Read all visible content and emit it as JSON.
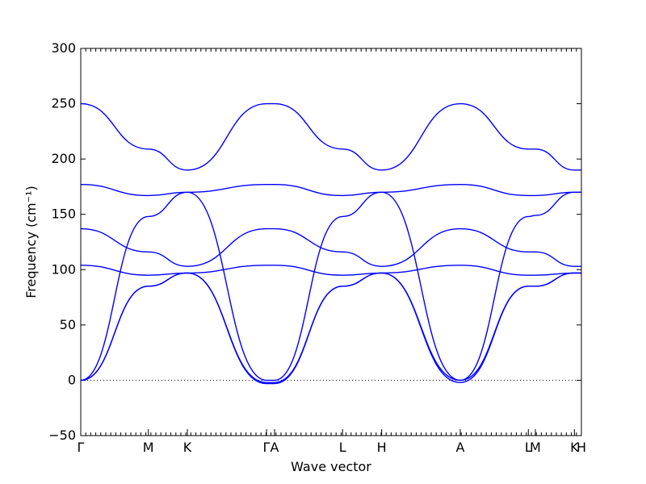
{
  "chart_data": {
    "type": "line",
    "xlabel": "Wave vector",
    "ylabel": "Frequency (cm⁻¹)",
    "xlim": [
      0,
      1
    ],
    "ylim": [
      -50,
      300
    ],
    "y_ticks": [
      -50,
      0,
      50,
      100,
      150,
      200,
      250,
      300
    ],
    "x_ticks": [
      {
        "label": "Γ",
        "x": 0.0
      },
      {
        "label": "M",
        "x": 0.135
      },
      {
        "label": "K",
        "x": 0.213
      },
      {
        "label": "Γ",
        "x": 0.371
      },
      {
        "label": "A",
        "x": 0.387
      },
      {
        "label": "L",
        "x": 0.523
      },
      {
        "label": "H",
        "x": 0.601
      },
      {
        "label": "A",
        "x": 0.758
      },
      {
        "label": "L",
        "x": 0.894
      },
      {
        "label": "M",
        "x": 0.908
      },
      {
        "label": "K",
        "x": 0.986
      },
      {
        "label": "H",
        "x": 1.0
      }
    ],
    "zero_line": {
      "y": 0,
      "style": "dotted"
    },
    "grid": false,
    "legend": false,
    "line_color": "#0000ff",
    "series": [
      {
        "x": [
          0.0,
          0.135,
          0.213,
          0.371,
          0.387,
          0.523,
          0.601,
          0.758,
          0.894,
          0.908,
          0.986,
          1.0
        ],
        "y": [
          0,
          85,
          97,
          -2,
          -2,
          85,
          97,
          -2,
          85,
          85,
          97,
          97
        ]
      },
      {
        "x": [
          0.0,
          0.135,
          0.213,
          0.371,
          0.387,
          0.523,
          0.601,
          0.758,
          0.894,
          0.908,
          0.986,
          1.0
        ],
        "y": [
          0,
          85,
          97,
          -3,
          -3,
          85,
          97,
          0,
          85,
          85,
          97,
          97
        ]
      },
      {
        "x": [
          0.0,
          0.135,
          0.213,
          0.371,
          0.387,
          0.523,
          0.601,
          0.758,
          0.894,
          0.908,
          0.986,
          1.0
        ],
        "y": [
          104,
          95,
          97,
          104,
          104,
          95,
          97,
          104,
          95,
          95,
          97,
          97
        ]
      },
      {
        "x": [
          0.0,
          0.135,
          0.213,
          0.371,
          0.387,
          0.523,
          0.601,
          0.758,
          0.894,
          0.908,
          0.986,
          1.0
        ],
        "y": [
          0,
          148,
          170,
          0,
          0,
          148,
          170,
          0,
          148,
          149,
          170,
          170
        ]
      },
      {
        "x": [
          0.0,
          0.135,
          0.213,
          0.371,
          0.387,
          0.523,
          0.601,
          0.758,
          0.894,
          0.908,
          0.986,
          1.0
        ],
        "y": [
          137,
          116,
          103,
          137,
          137,
          116,
          103,
          137,
          116,
          116,
          103,
          103
        ]
      },
      {
        "x": [
          0.0,
          0.135,
          0.213,
          0.371,
          0.387,
          0.523,
          0.601,
          0.758,
          0.894,
          0.908,
          0.986,
          1.0
        ],
        "y": [
          177,
          167,
          170,
          177,
          177,
          167,
          170,
          177,
          167,
          167,
          170,
          170
        ]
      },
      {
        "x": [
          0.0,
          0.135,
          0.213,
          0.371,
          0.387,
          0.523,
          0.601,
          0.758,
          0.894,
          0.908,
          0.986,
          1.0
        ],
        "y": [
          250,
          209,
          190,
          250,
          250,
          209,
          190,
          250,
          209,
          209,
          190,
          190
        ]
      }
    ]
  }
}
